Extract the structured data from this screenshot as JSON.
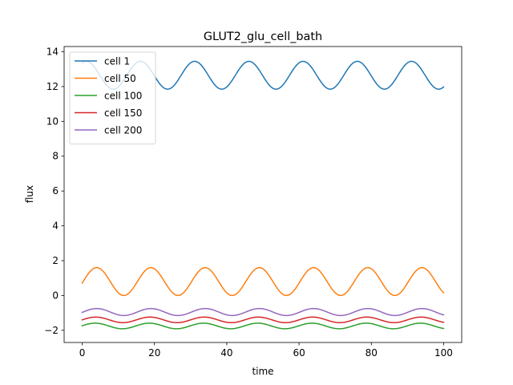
{
  "chart_data": {
    "type": "line",
    "title": "GLUT2_glu_cell_bath",
    "xlabel": "time",
    "ylabel": "flux",
    "xlim": [
      -5,
      105
    ],
    "ylim": [
      -2.7,
      14.3
    ],
    "xticks": [
      0,
      20,
      40,
      60,
      80,
      100
    ],
    "yticks": [
      -2,
      0,
      2,
      4,
      6,
      8,
      10,
      12,
      14
    ],
    "xtick_labels": [
      "0",
      "20",
      "40",
      "60",
      "80",
      "100"
    ],
    "ytick_labels": [
      "−2",
      "0",
      "2",
      "4",
      "6",
      "8",
      "10",
      "12",
      "14"
    ],
    "grid": false,
    "legend": {
      "placement": "top-left"
    },
    "series": [
      {
        "name": "cell 1",
        "color": "#1f77b4",
        "baseline": 12.65,
        "amplitude": 0.8,
        "period": 15,
        "phase": 1.1
      },
      {
        "name": "cell 50",
        "color": "#ff7f0e",
        "baseline": 0.8,
        "amplitude": 0.8,
        "period": 15,
        "phase": -0.11
      },
      {
        "name": "cell 100",
        "color": "#2ca02c",
        "baseline": -1.75,
        "amplitude": 0.16,
        "period": 15,
        "phase": 0.07
      },
      {
        "name": "cell 150",
        "color": "#d62728",
        "baseline": -1.4,
        "amplitude": 0.16,
        "period": 15,
        "phase": 0.0
      },
      {
        "name": "cell 200",
        "color": "#9467bd",
        "baseline": -0.95,
        "amplitude": 0.2,
        "period": 15,
        "phase": -0.11
      }
    ],
    "x_start": 0,
    "x_end": 100
  }
}
